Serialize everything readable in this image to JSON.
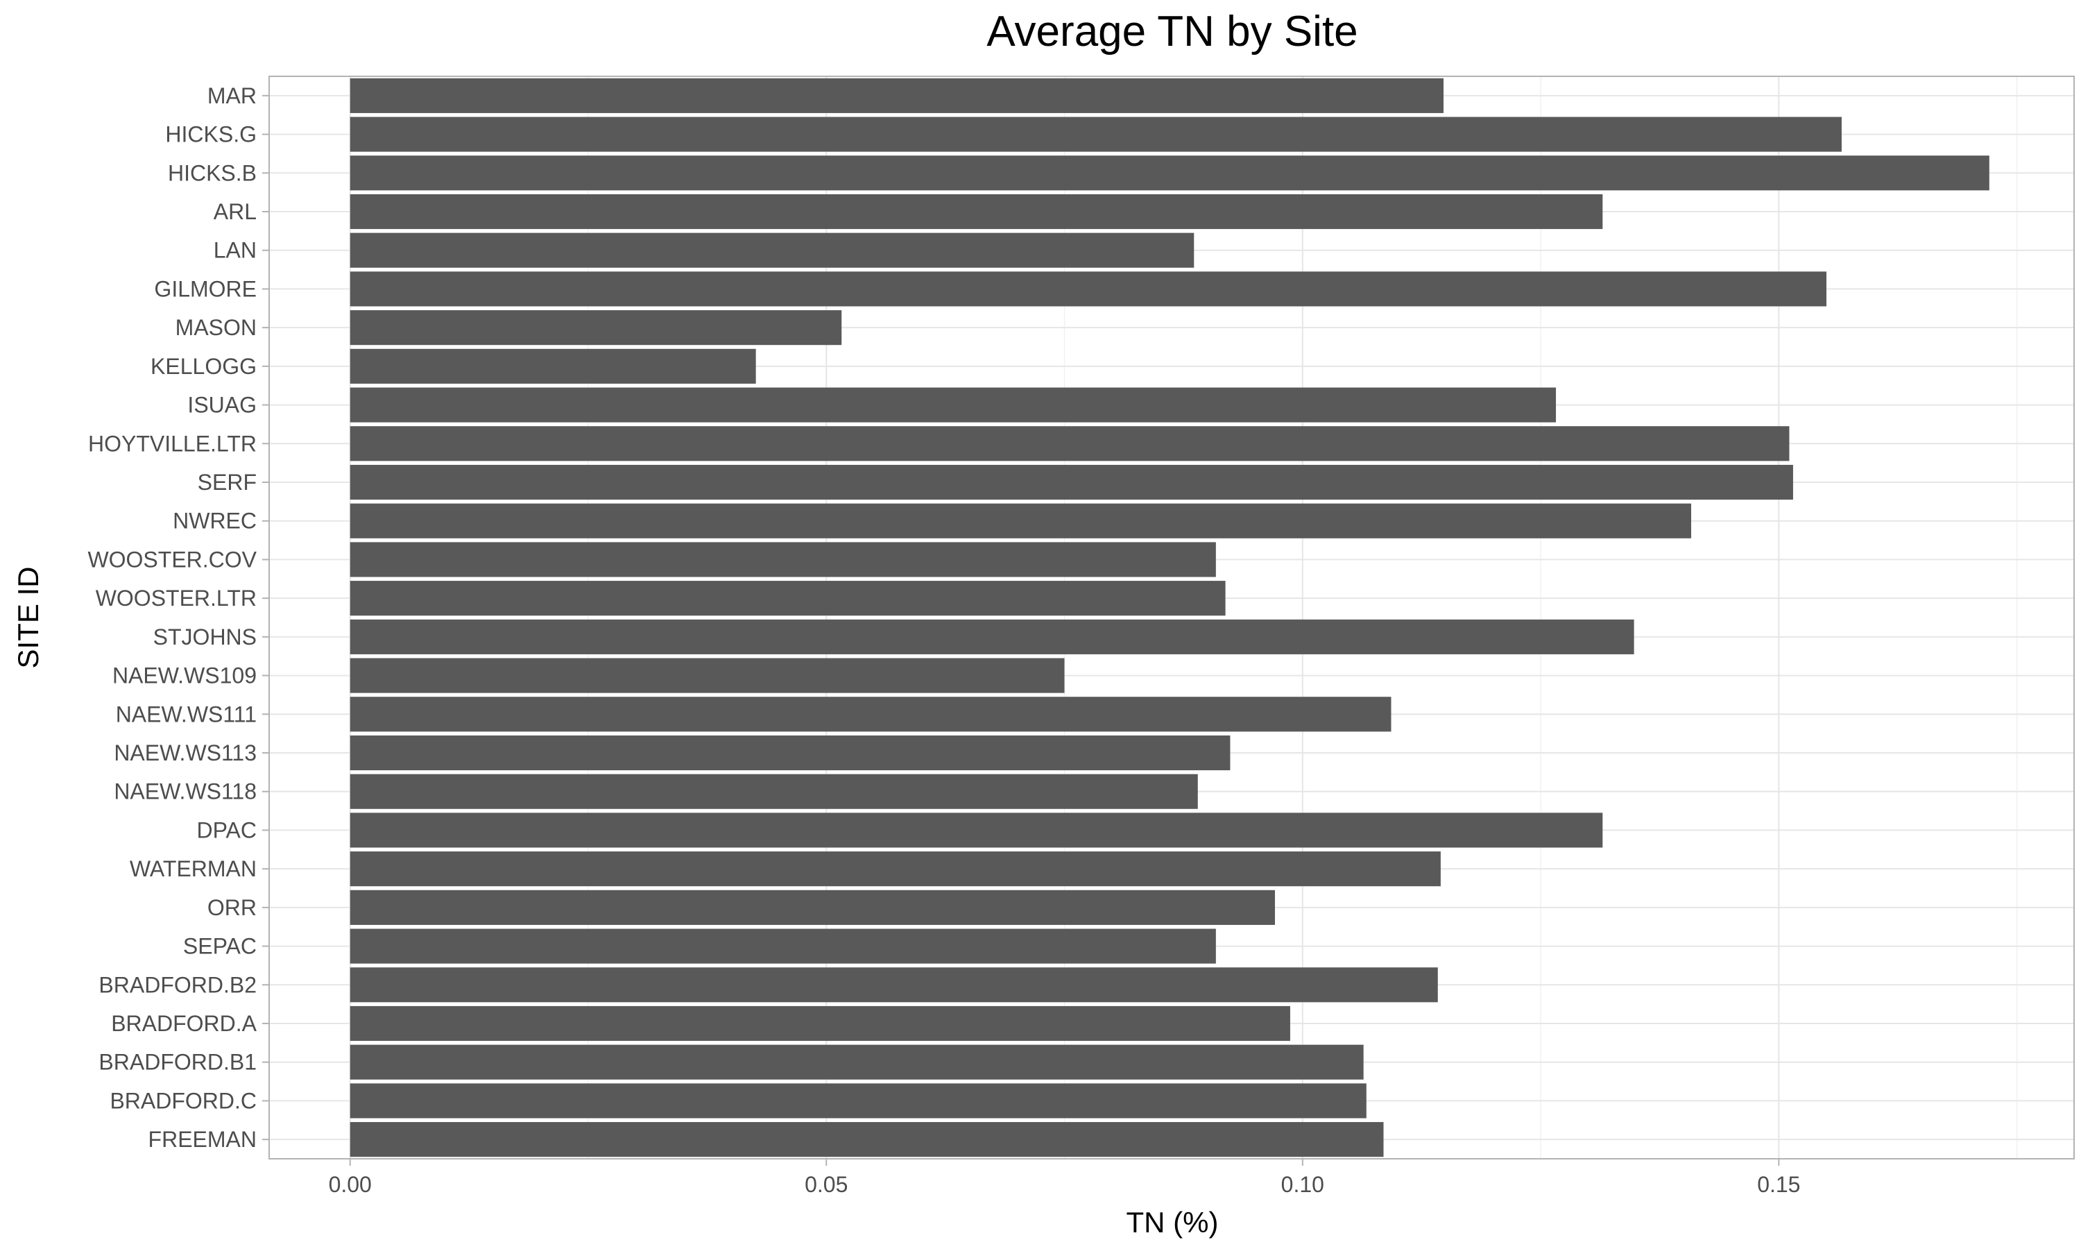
{
  "chart_data": {
    "type": "bar",
    "orientation": "horizontal",
    "title": "Average TN by Site",
    "xlabel": "TN (%)",
    "ylabel": "SITE ID",
    "xlim": [
      -0.0085,
      0.181
    ],
    "x_ticks": [
      0.0,
      0.05,
      0.1,
      0.15
    ],
    "x_tick_labels": [
      "0.00",
      "0.05",
      "0.10",
      "0.15"
    ],
    "grid": true,
    "bar_color": "#595959",
    "categories": [
      "MAR",
      "HICKS.G",
      "HICKS.B",
      "ARL",
      "LAN",
      "GILMORE",
      "MASON",
      "KELLOGG",
      "ISUAG",
      "HOYTVILLE.LTR",
      "SERF",
      "NWREC",
      "WOOSTER.COV",
      "WOOSTER.LTR",
      "STJOHNS",
      "NAEW.WS109",
      "NAEW.WS111",
      "NAEW.WS113",
      "NAEW.WS118",
      "DPAC",
      "WATERMAN",
      "ORR",
      "SEPAC",
      "BRADFORD.B2",
      "BRADFORD.A",
      "BRADFORD.B1",
      "BRADFORD.C",
      "FREEMAN"
    ],
    "values": [
      0.1148,
      0.1566,
      0.1721,
      0.1315,
      0.0886,
      0.155,
      0.0516,
      0.0426,
      0.1266,
      0.1511,
      0.1515,
      0.1408,
      0.0909,
      0.0919,
      0.1348,
      0.075,
      0.1093,
      0.0924,
      0.089,
      0.1315,
      0.1145,
      0.0971,
      0.0909,
      0.1142,
      0.0987,
      0.1064,
      0.1067,
      0.1085
    ]
  }
}
